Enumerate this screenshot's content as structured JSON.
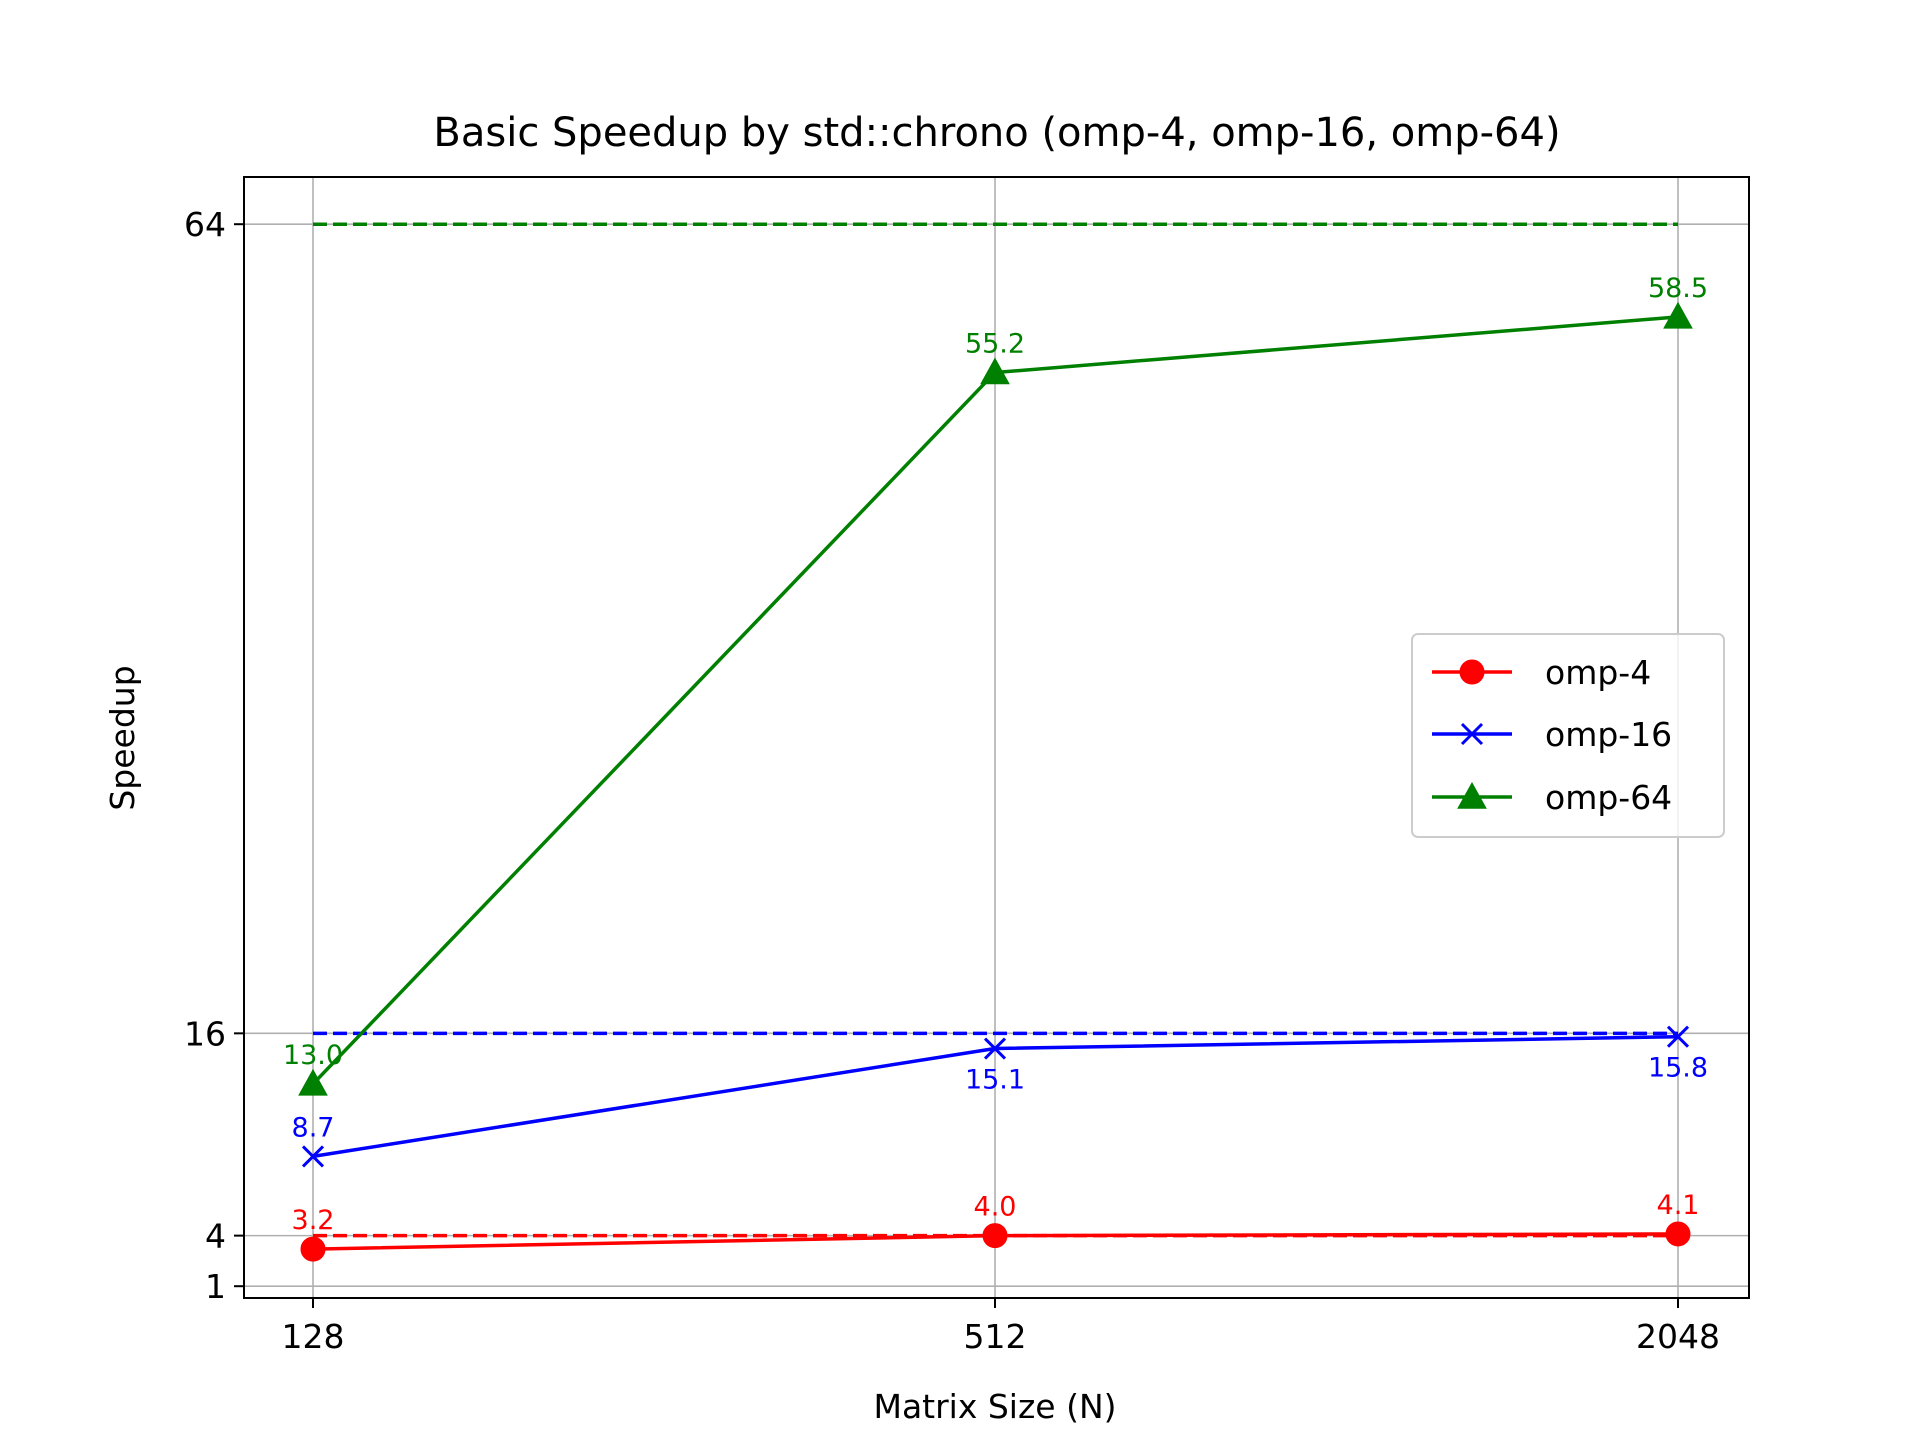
{
  "chart_data": {
    "type": "line",
    "title": "Basic Speedup by std::chrono (omp-4, omp-16, omp-64)",
    "xlabel": "Matrix Size (N)",
    "ylabel": "Speedup",
    "categories": [
      "128",
      "512",
      "2048"
    ],
    "yticks": [
      1,
      4,
      16,
      64
    ],
    "ytick_labels": [
      "1",
      "4",
      "16",
      "64"
    ],
    "ylim": [
      0.3,
      66.8
    ],
    "grid": true,
    "legend_position": "center-right",
    "series": [
      {
        "name": "omp-4",
        "color": "#ff0000",
        "marker": "circle",
        "values": [
          3.2,
          4.0,
          4.1
        ],
        "labels": [
          "3.2",
          "4.0",
          "4.1"
        ],
        "label_position": "above",
        "ideal": 4
      },
      {
        "name": "omp-16",
        "color": "#0000ff",
        "marker": "x",
        "values": [
          8.7,
          15.1,
          15.8
        ],
        "labels": [
          "8.7",
          "15.1",
          "15.8"
        ],
        "label_position": "mixed",
        "ideal": 16
      },
      {
        "name": "omp-64",
        "color": "#008000",
        "marker": "triangle",
        "values": [
          13.0,
          55.2,
          58.5
        ],
        "labels": [
          "13.0",
          "55.2",
          "58.5"
        ],
        "label_position": "above",
        "ideal": 64
      }
    ]
  }
}
